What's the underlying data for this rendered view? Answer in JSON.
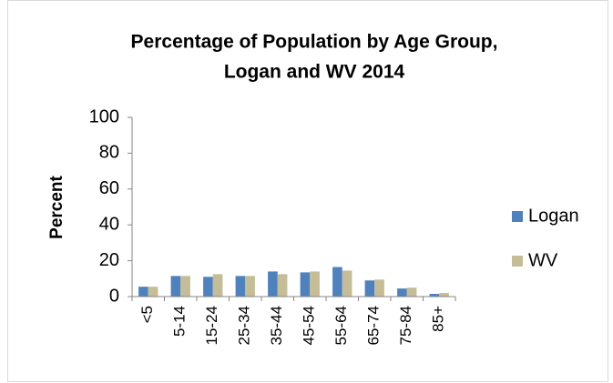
{
  "chart_data": {
    "type": "bar",
    "title": [
      "Percentage of Population by Age Group,",
      "Logan and WV 2014"
    ],
    "y_label": "Percent",
    "categories": [
      "<5",
      "5-14",
      "15-24",
      "25-34",
      "35-44",
      "45-54",
      "55-64",
      "65-74",
      "75-84",
      "85+"
    ],
    "series": [
      {
        "name": "Logan",
        "color": "#4f81bd",
        "values": [
          5.5,
          11.5,
          11,
          11.5,
          14,
          13.5,
          16.5,
          9,
          4.5,
          1.5
        ]
      },
      {
        "name": "WV",
        "color": "#c4bd97",
        "values": [
          5.5,
          11.5,
          12.5,
          11.5,
          12.5,
          14,
          14.5,
          9.5,
          5,
          2
        ]
      }
    ],
    "ylim": [
      0,
      100
    ],
    "yticks": [
      0,
      20,
      40,
      60,
      80,
      100
    ],
    "grid": false,
    "legend": "right"
  }
}
